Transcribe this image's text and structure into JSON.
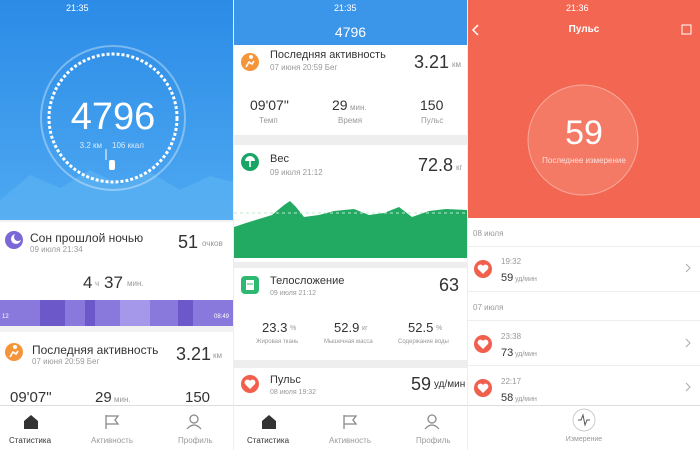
{
  "screens": [
    {
      "status_time": "21:35",
      "steps": {
        "value": "4796",
        "distance": "3.2 км",
        "calories": "106 ккал"
      },
      "sleep": {
        "title": "Сон прошлой ночью",
        "date": "09 июля 21:34",
        "score": "51",
        "score_unit": "очков",
        "hours": "4",
        "hours_unit": "ч",
        "minutes": "37",
        "minutes_unit": "мин.",
        "bar_start": "12",
        "bar_end": "08:49"
      },
      "activity": {
        "title": "Последняя активность",
        "subtitle": "07 июня 20:59 Бег",
        "distance": "3.21",
        "distance_unit": "км",
        "pace": "09'07\"",
        "time": "29",
        "time_unit": "мин.",
        "pulse": "150"
      },
      "nav": [
        "Статистика",
        "Активность",
        "Профиль"
      ]
    },
    {
      "status_time": "21:35",
      "header": "4796",
      "activity": {
        "title": "Последняя активность",
        "subtitle": "07 июня 20:59 Бег",
        "distance": "3.21",
        "distance_unit": "км",
        "pace": "09'07\"",
        "pace_label": "Темп",
        "time": "29",
        "time_unit": "мин.",
        "time_label": "Время",
        "pulse": "150",
        "pulse_label": "Пульс"
      },
      "weight": {
        "title": "Вес",
        "date": "09 июля 21:12",
        "value": "72.8",
        "unit": "кг"
      },
      "body": {
        "title": "Телосложение",
        "date": "09 июля 21:12",
        "score": "63",
        "metrics": [
          {
            "value": "23.3",
            "unit": "%",
            "label": "Жировая ткань"
          },
          {
            "value": "52.9",
            "unit": "кг",
            "label": "Мышечная масса"
          },
          {
            "value": "52.5",
            "unit": "%",
            "label": "Содержание воды"
          }
        ]
      },
      "pulse": {
        "title": "Пульс",
        "date": "08 июля 19:32",
        "value": "59",
        "unit": "уд/мин"
      },
      "nav": [
        "Статистика",
        "Активность",
        "Профиль"
      ]
    },
    {
      "status_time": "21:36",
      "title": "Пульс",
      "value": "59",
      "caption": "Последнее измерение",
      "groups": [
        {
          "date": "08 июля",
          "items": [
            {
              "time": "19:32",
              "value": "59",
              "unit": "уд/мин"
            }
          ]
        },
        {
          "date": "07 июля",
          "items": [
            {
              "time": "23:38",
              "value": "73",
              "unit": "уд/мин"
            },
            {
              "time": "22:17",
              "value": "58",
              "unit": "уд/мин"
            }
          ]
        }
      ],
      "nav": "Измерение"
    }
  ]
}
